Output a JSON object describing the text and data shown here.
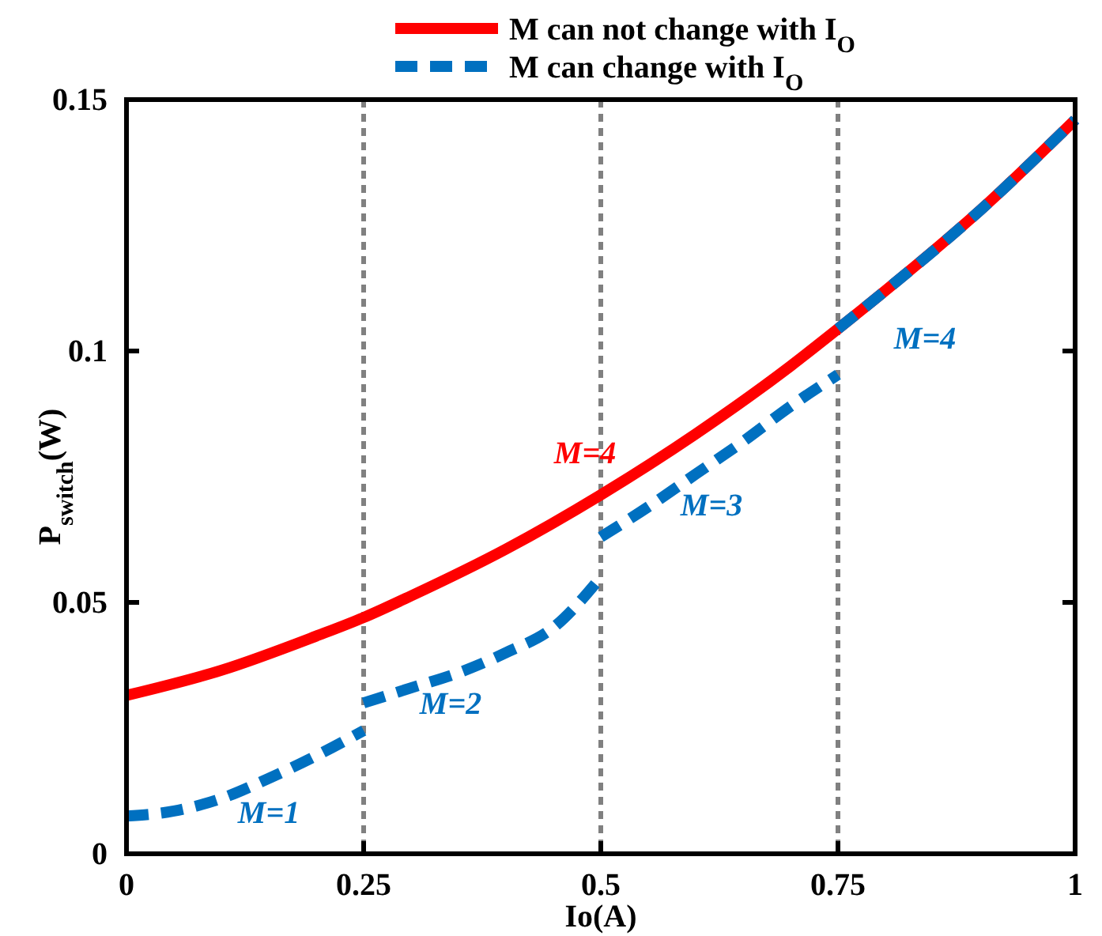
{
  "chart_data": {
    "type": "line",
    "xlabel": "Io(A)",
    "ylabel": "P$_{switch}$(W)",
    "xlim": [
      0,
      1
    ],
    "ylim": [
      0,
      0.15
    ],
    "xticks": [
      0,
      0.25,
      0.5,
      0.75,
      1
    ],
    "yticks": [
      0,
      0.05,
      0.1,
      0.15
    ],
    "grid": false,
    "legend": "top",
    "marker": "none",
    "series": [
      {
        "name": "M can not change with I$_{O}$",
        "color": "#ff0000",
        "line_style": "solid",
        "x": [
          0,
          0.1,
          0.2,
          0.25,
          0.3,
          0.4,
          0.5,
          0.6,
          0.7,
          0.75,
          0.8,
          0.9,
          1
        ],
        "values": [
          0.0315,
          0.0365,
          0.0433,
          0.047,
          0.0513,
          0.0606,
          0.0714,
          0.0835,
          0.097,
          0.1044,
          0.112,
          0.128,
          0.146
        ]
      },
      {
        "name": "M can change with I$_{O}$",
        "color": "#0070c0",
        "line_style": "dashed",
        "x": [
          0,
          0.05,
          0.1,
          0.15,
          0.2,
          0.25,
          null,
          0.25,
          0.3,
          0.35,
          0.4,
          0.45,
          0.5,
          null,
          0.5,
          0.55,
          0.6,
          0.65,
          0.7,
          0.75,
          null,
          0.75,
          0.8,
          0.9,
          1
        ],
        "values": [
          0.0075,
          0.0085,
          0.011,
          0.015,
          0.0195,
          0.0245,
          null,
          0.03,
          0.033,
          0.036,
          0.04,
          0.045,
          0.055,
          null,
          0.063,
          0.069,
          0.0755,
          0.082,
          0.089,
          0.0953,
          null,
          0.1044,
          0.112,
          0.128,
          0.146
        ]
      }
    ],
    "ref_lines": [
      {
        "axis": "x",
        "value": 0.25,
        "color": "#808080",
        "line_style": "dotted"
      },
      {
        "axis": "x",
        "value": 0.5,
        "color": "#808080",
        "line_style": "dotted"
      },
      {
        "axis": "x",
        "value": 0.75,
        "color": "#808080",
        "line_style": "dotted"
      }
    ],
    "annotations": [
      {
        "text": "M=1",
        "x": 0.15,
        "y": 0.015
      },
      {
        "text": "M=2",
        "x": 0.35,
        "y": 0.036
      },
      {
        "text": "M=3",
        "x": 0.6,
        "y": 0.0755
      },
      {
        "text": "M=4",
        "x": 0.5,
        "y": 0.0714
      },
      {
        "text": "M=4",
        "x": 0.85,
        "y": 0.12
      }
    ]
  }
}
